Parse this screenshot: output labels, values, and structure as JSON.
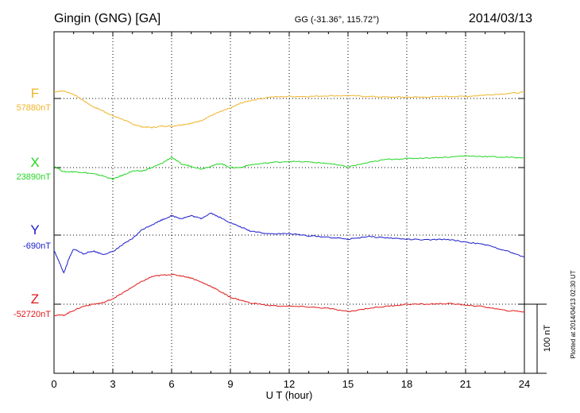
{
  "header": {
    "station": "Gingin (GNG)  [GA]",
    "coords": "GG (-31.36°, 115.72°)",
    "date": "2014/03/13"
  },
  "footer_note": "Plotted at 2014/04/13 02:30 UT",
  "chart_data": {
    "type": "line",
    "title": "Gingin (GNG)  [GA]",
    "subtitle": "GG (-31.36°, 115.72°)",
    "date": "2014/03/13",
    "xlabel": "U T (hour)",
    "xlim": [
      0,
      24
    ],
    "xticks": [
      0,
      3,
      6,
      9,
      12,
      15,
      18,
      21,
      24
    ],
    "grid": true,
    "scale_bar": {
      "label": "100 nT",
      "value": 100,
      "unit": "nT"
    },
    "series": [
      {
        "name": "F",
        "baseline_label": "57880nT",
        "baseline": 57880,
        "color": "#f0b429",
        "x": [
          0,
          0.5,
          1,
          1.5,
          2,
          2.5,
          3,
          3.5,
          4,
          4.5,
          5,
          5.5,
          6,
          6.5,
          7,
          7.5,
          8,
          8.5,
          9,
          9.5,
          10,
          11,
          12,
          13,
          14,
          15,
          16,
          17,
          18,
          19,
          20,
          21,
          22,
          23,
          24
        ],
        "values": [
          10,
          11,
          6,
          -3,
          -12,
          -18,
          -25,
          -30,
          -37,
          -41,
          -42,
          -40,
          -40,
          -38,
          -36,
          -32,
          -25,
          -19,
          -14,
          -7,
          -3,
          2,
          3,
          3,
          4,
          4,
          3,
          2,
          2,
          2,
          3,
          3,
          5,
          7,
          9
        ]
      },
      {
        "name": "X",
        "baseline_label": "23890nT",
        "baseline": 23890,
        "color": "#22d622",
        "x": [
          0,
          0.5,
          1,
          1.5,
          2,
          2.5,
          3,
          3.5,
          4,
          4.5,
          5,
          5.5,
          6,
          6.5,
          7,
          7.5,
          8,
          8.5,
          9,
          9.5,
          10,
          11,
          12,
          13,
          14,
          15,
          16,
          17,
          18,
          19,
          20,
          21,
          22,
          23,
          24
        ],
        "values": [
          2,
          -6,
          -6,
          -7,
          -9,
          -12,
          -17,
          -11,
          -5,
          -5,
          0,
          6,
          15,
          5,
          2,
          -2,
          2,
          6,
          0,
          0,
          4,
          7,
          9,
          8,
          6,
          1,
          7,
          12,
          13,
          14,
          15,
          17,
          16,
          15,
          14
        ]
      },
      {
        "name": "Y",
        "baseline_label": "-690nT",
        "baseline": -690,
        "color": "#1a1acc",
        "x": [
          0,
          0.25,
          0.5,
          0.75,
          1,
          1.5,
          2,
          2.5,
          3,
          3.5,
          4,
          4.5,
          5,
          5.5,
          6,
          6.5,
          7,
          7.5,
          8,
          8.5,
          9,
          9.5,
          10,
          11,
          12,
          13,
          14,
          15,
          16,
          17,
          18,
          19,
          20,
          21,
          22,
          23,
          24
        ],
        "values": [
          -22,
          -38,
          -55,
          -35,
          -20,
          -27,
          -23,
          -28,
          -24,
          -14,
          -5,
          8,
          15,
          22,
          28,
          24,
          28,
          24,
          32,
          25,
          18,
          12,
          6,
          2,
          2,
          -1,
          -3,
          -6,
          -2,
          -4,
          -6,
          -7,
          -6,
          -10,
          -14,
          -22,
          -32
        ]
      },
      {
        "name": "Z",
        "baseline_label": "-52720nT",
        "baseline": -52720,
        "color": "#e01818",
        "x": [
          0,
          0.5,
          1,
          1.5,
          2,
          2.5,
          3,
          3.5,
          4,
          4.5,
          5,
          5.5,
          6,
          6.5,
          7,
          7.5,
          8,
          8.5,
          9,
          9.5,
          10,
          11,
          12,
          13,
          14,
          15,
          16,
          17,
          18,
          19,
          20,
          21,
          22,
          23,
          24
        ],
        "values": [
          -16,
          -16,
          -9,
          -3,
          0,
          2,
          8,
          16,
          25,
          33,
          40,
          42,
          43,
          41,
          38,
          32,
          26,
          18,
          10,
          6,
          2,
          -2,
          -3,
          -4,
          -6,
          -11,
          -6,
          -3,
          0,
          0,
          1,
          -1,
          -4,
          -9,
          -11
        ]
      }
    ]
  }
}
